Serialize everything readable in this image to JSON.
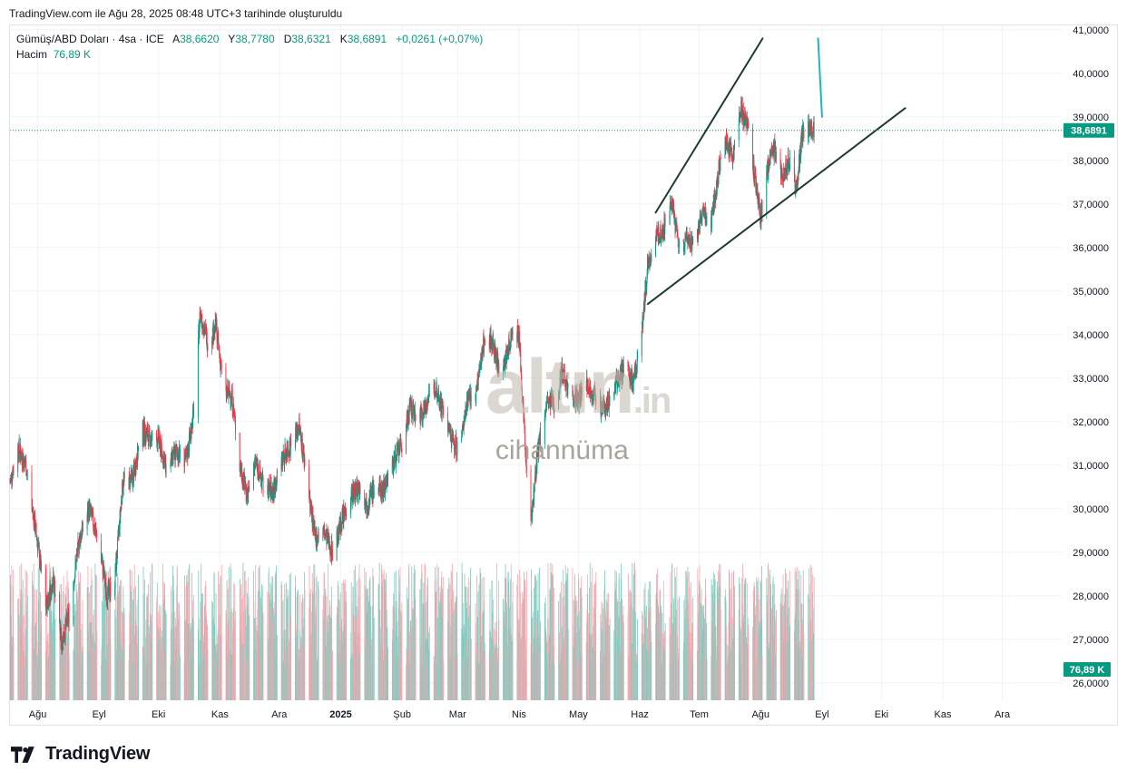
{
  "caption": "TradingView.com ile Ağu 28, 2025 08:48 UTC+3 tarihinde oluşturuldu",
  "legend": {
    "symbol": "Gümüş/ABD Doları · 4sa · ICE",
    "open_label": "A",
    "open": "38,6620",
    "high_label": "Y",
    "high": "38,7780",
    "low_label": "D",
    "low": "38,6321",
    "close_label": "K",
    "close": "38,6891",
    "change": "+0,0261 (+0,07%)",
    "volume_label": "Hacim",
    "volume": "76,89 K"
  },
  "watermark": {
    "brand": "altın",
    "brand_domain": ".in",
    "tagline": "cihannüma"
  },
  "logo_text": "TradingView",
  "colors": {
    "up": "#089981",
    "down": "#f23645",
    "up_vol": "#7fcbbf",
    "down_vol": "#f7a9b0",
    "trendline": "#1e3a2f",
    "projection": "#22b5c1"
  },
  "chart_data": {
    "type": "candlestick",
    "title": "Gümüş/ABD Doları · 4sa · ICE",
    "ylim": [
      25.6,
      41.1
    ],
    "y_ticks": [
      "41,0000",
      "40,0000",
      "39,0000",
      "38,0000",
      "37,0000",
      "36,0000",
      "35,0000",
      "34,0000",
      "33,0000",
      "32,0000",
      "31,0000",
      "30,0000",
      "29,0000",
      "28,0000",
      "27,0000",
      "26,0000"
    ],
    "x_ticks": [
      "Ağu",
      "Eyl",
      "Eki",
      "Kas",
      "Ara",
      "2025",
      "Şub",
      "Mar",
      "Nis",
      "May",
      "Haz",
      "Tem",
      "Ağu",
      "Eyl",
      "Eki",
      "Kas",
      "Ara"
    ],
    "x_range": [
      "2024-07-18",
      "2025-12-31"
    ],
    "x_tick_dates": [
      "2024-08-01",
      "2024-09-01",
      "2024-10-01",
      "2024-11-01",
      "2024-12-01",
      "2025-01-01",
      "2025-02-01",
      "2025-03-01",
      "2025-04-01",
      "2025-05-01",
      "2025-06-01",
      "2025-07-01",
      "2025-08-01",
      "2025-09-01",
      "2025-10-01",
      "2025-11-01",
      "2025-12-01"
    ],
    "price_path": [
      [
        "2024-07-18",
        30.6
      ],
      [
        "2024-07-22",
        31.4
      ],
      [
        "2024-07-26",
        31.0
      ],
      [
        "2024-08-01",
        29.2
      ],
      [
        "2024-08-05",
        27.7
      ],
      [
        "2024-08-09",
        28.4
      ],
      [
        "2024-08-13",
        26.9
      ],
      [
        "2024-08-17",
        27.6
      ],
      [
        "2024-08-22",
        29.3
      ],
      [
        "2024-08-27",
        30.0
      ],
      [
        "2024-09-01",
        29.2
      ],
      [
        "2024-09-05",
        28.0
      ],
      [
        "2024-09-09",
        28.4
      ],
      [
        "2024-09-13",
        30.6
      ],
      [
        "2024-09-18",
        30.7
      ],
      [
        "2024-09-23",
        31.8
      ],
      [
        "2024-09-27",
        31.6
      ],
      [
        "2024-10-01",
        31.6
      ],
      [
        "2024-10-05",
        30.9
      ],
      [
        "2024-10-10",
        31.3
      ],
      [
        "2024-10-15",
        31.1
      ],
      [
        "2024-10-19",
        32.3
      ],
      [
        "2024-10-22",
        34.5
      ],
      [
        "2024-10-26",
        33.8
      ],
      [
        "2024-10-30",
        34.2
      ],
      [
        "2024-11-03",
        32.7
      ],
      [
        "2024-11-07",
        32.6
      ],
      [
        "2024-11-11",
        31.0
      ],
      [
        "2024-11-15",
        30.3
      ],
      [
        "2024-11-19",
        31.1
      ],
      [
        "2024-11-23",
        30.5
      ],
      [
        "2024-11-28",
        30.4
      ],
      [
        "2024-12-03",
        31.2
      ],
      [
        "2024-12-07",
        31.5
      ],
      [
        "2024-12-11",
        31.9
      ],
      [
        "2024-12-15",
        30.7
      ],
      [
        "2024-12-19",
        29.3
      ],
      [
        "2024-12-23",
        29.5
      ],
      [
        "2024-12-28",
        29.0
      ],
      [
        "2025-01-02",
        29.8
      ],
      [
        "2025-01-06",
        30.3
      ],
      [
        "2025-01-10",
        30.5
      ],
      [
        "2025-01-14",
        30.1
      ],
      [
        "2025-01-18",
        30.5
      ],
      [
        "2025-01-22",
        30.4
      ],
      [
        "2025-01-27",
        31.0
      ],
      [
        "2025-02-01",
        31.5
      ],
      [
        "2025-02-05",
        32.3
      ],
      [
        "2025-02-10",
        32.1
      ],
      [
        "2025-02-14",
        32.5
      ],
      [
        "2025-02-18",
        32.8
      ],
      [
        "2025-02-22",
        32.2
      ],
      [
        "2025-02-26",
        31.6
      ],
      [
        "2025-03-02",
        31.3
      ],
      [
        "2025-03-06",
        32.6
      ],
      [
        "2025-03-10",
        32.5
      ],
      [
        "2025-03-14",
        33.8
      ],
      [
        "2025-03-18",
        33.9
      ],
      [
        "2025-03-22",
        33.2
      ],
      [
        "2025-03-26",
        33.5
      ],
      [
        "2025-03-29",
        34.2
      ],
      [
        "2025-04-01",
        34.0
      ],
      [
        "2025-04-04",
        31.5
      ],
      [
        "2025-04-07",
        29.7
      ],
      [
        "2025-04-11",
        31.5
      ],
      [
        "2025-04-15",
        32.4
      ],
      [
        "2025-04-19",
        32.4
      ],
      [
        "2025-04-23",
        33.2
      ],
      [
        "2025-04-27",
        32.6
      ],
      [
        "2025-05-01",
        32.5
      ],
      [
        "2025-05-05",
        32.9
      ],
      [
        "2025-05-09",
        32.6
      ],
      [
        "2025-05-13",
        32.3
      ],
      [
        "2025-05-17",
        32.5
      ],
      [
        "2025-05-21",
        33.0
      ],
      [
        "2025-05-25",
        33.2
      ],
      [
        "2025-05-29",
        32.9
      ],
      [
        "2025-06-02",
        34.1
      ],
      [
        "2025-06-05",
        35.6
      ],
      [
        "2025-06-09",
        36.2
      ],
      [
        "2025-06-13",
        36.4
      ],
      [
        "2025-06-17",
        37.0
      ],
      [
        "2025-06-21",
        36.0
      ],
      [
        "2025-06-25",
        36.2
      ],
      [
        "2025-06-29",
        36.1
      ],
      [
        "2025-07-03",
        36.8
      ],
      [
        "2025-07-07",
        36.6
      ],
      [
        "2025-07-11",
        37.8
      ],
      [
        "2025-07-14",
        38.5
      ],
      [
        "2025-07-18",
        38.1
      ],
      [
        "2025-07-22",
        39.2
      ],
      [
        "2025-07-25",
        38.9
      ],
      [
        "2025-07-29",
        37.6
      ],
      [
        "2025-08-01",
        36.7
      ],
      [
        "2025-08-05",
        37.9
      ],
      [
        "2025-08-08",
        38.3
      ],
      [
        "2025-08-12",
        37.7
      ],
      [
        "2025-08-16",
        38.0
      ],
      [
        "2025-08-19",
        37.3
      ],
      [
        "2025-08-22",
        38.6
      ],
      [
        "2025-08-25",
        38.7
      ],
      [
        "2025-08-28",
        38.69
      ]
    ],
    "current_price_label": "38,6891",
    "current_volume_label": "76,89 K",
    "drawings": [
      {
        "kind": "trendline",
        "from": [
          "2025-06-09",
          36.8
        ],
        "to": [
          "2025-08-02",
          40.8
        ]
      },
      {
        "kind": "trendline",
        "from": [
          "2025-06-05",
          34.7
        ],
        "to": [
          "2025-10-13",
          39.2
        ]
      },
      {
        "kind": "projection",
        "from": [
          "2025-08-30",
          40.8
        ],
        "to": [
          "2025-09-01",
          39.0
        ]
      }
    ]
  }
}
